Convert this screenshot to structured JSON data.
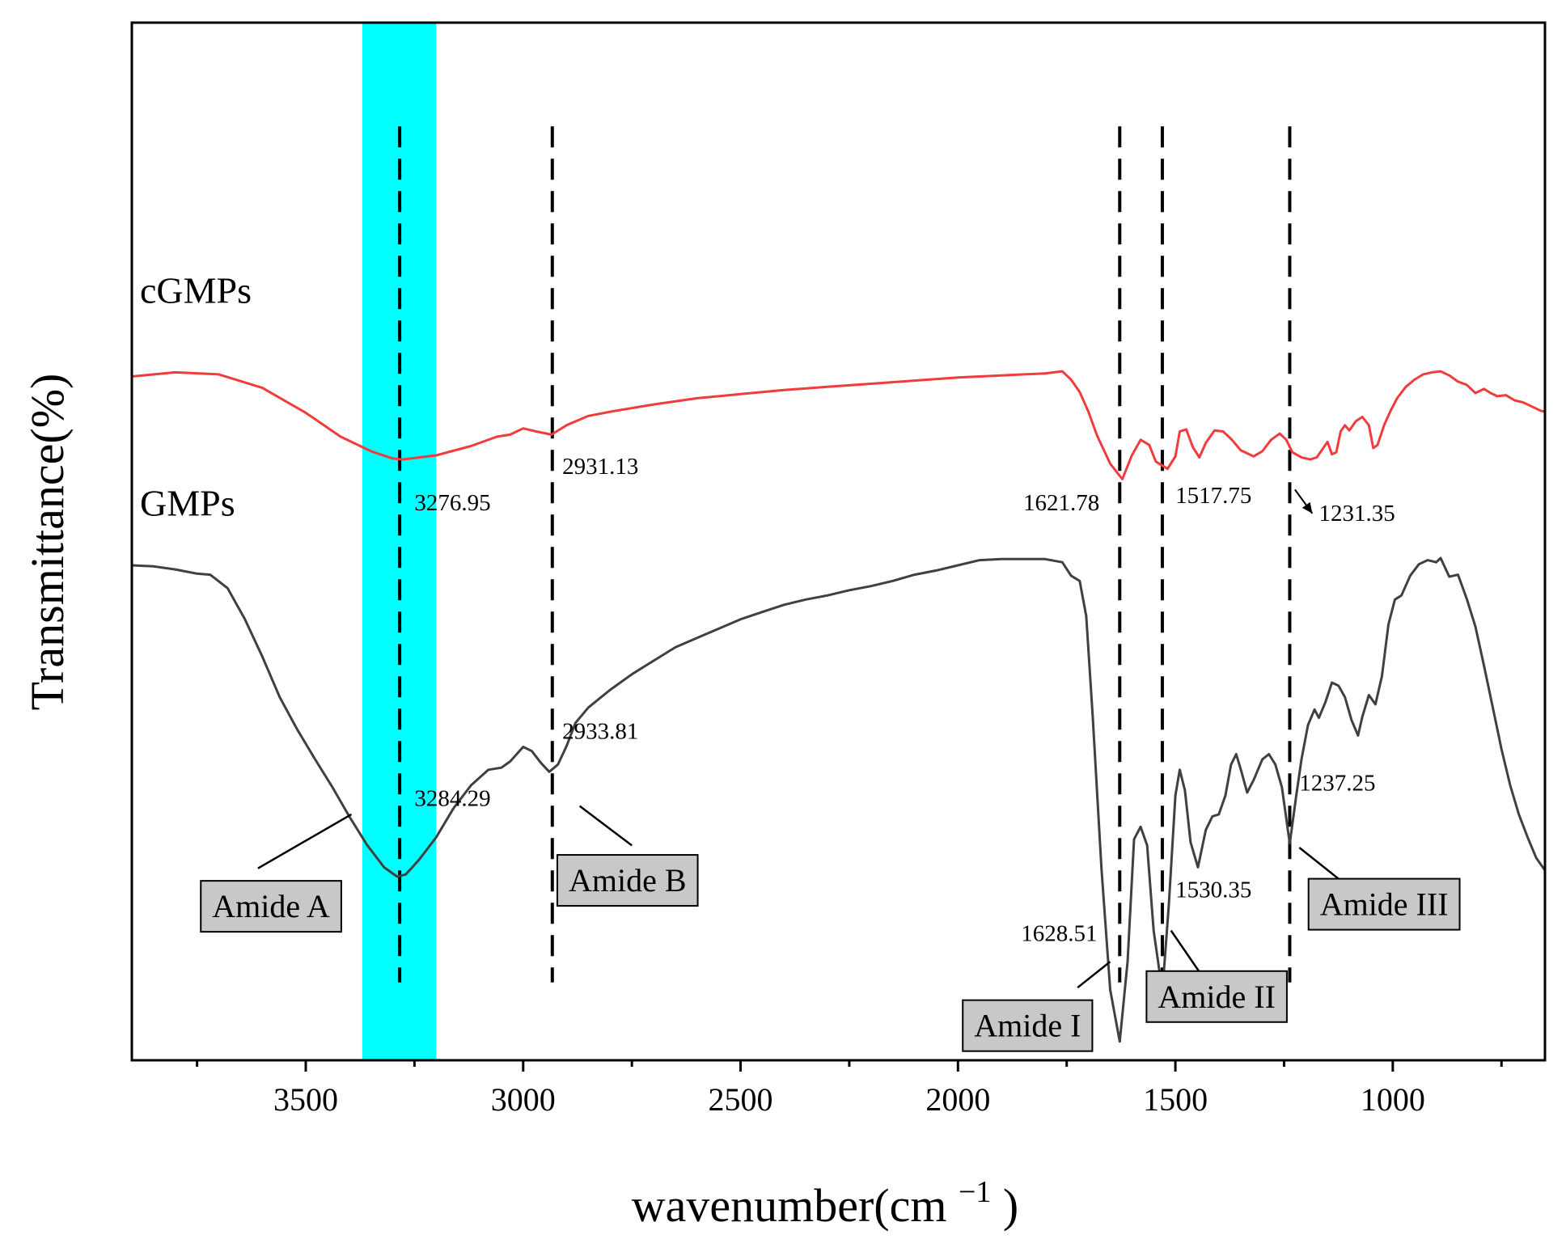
{
  "chart_data": {
    "type": "line",
    "xlabel": "wavenumber(cm",
    "xlabel_superscript": "−1",
    "xlabel_close": ")",
    "ylabel": "Transmittance(%)",
    "xlim": [
      3900,
      650
    ],
    "ylim": [
      0,
      100
    ],
    "x_ticks": [
      3500,
      3000,
      2500,
      2000,
      1500,
      1000
    ],
    "x_tick_labels": [
      "3500",
      "3000",
      "2500",
      "2000",
      "1500",
      "1000"
    ],
    "minor_ticks": [
      3750,
      3250,
      2750,
      2250,
      1750,
      1250,
      750
    ],
    "highlight_band": {
      "from": 3370,
      "to": 3200,
      "color": "#00ffff"
    },
    "dashed_lines": [
      3284,
      2933,
      1628,
      1530,
      1237
    ],
    "series": [
      {
        "name": "cGMPs",
        "color": "#f03c3c",
        "points": [
          [
            3900,
            65.9
          ],
          [
            3800,
            66.3
          ],
          [
            3700,
            66.1
          ],
          [
            3600,
            64.8
          ],
          [
            3500,
            62.4
          ],
          [
            3420,
            60.1
          ],
          [
            3350,
            58.7
          ],
          [
            3300,
            58.0
          ],
          [
            3277,
            57.9
          ],
          [
            3200,
            58.3
          ],
          [
            3120,
            59.2
          ],
          [
            3060,
            60.1
          ],
          [
            3030,
            60.3
          ],
          [
            3000,
            60.9
          ],
          [
            2970,
            60.6
          ],
          [
            2935,
            60.3
          ],
          [
            2900,
            61.2
          ],
          [
            2850,
            62.1
          ],
          [
            2800,
            62.5
          ],
          [
            2700,
            63.2
          ],
          [
            2600,
            63.8
          ],
          [
            2500,
            64.2
          ],
          [
            2400,
            64.6
          ],
          [
            2300,
            64.9
          ],
          [
            2200,
            65.2
          ],
          [
            2100,
            65.5
          ],
          [
            2000,
            65.8
          ],
          [
            1900,
            66.0
          ],
          [
            1800,
            66.2
          ],
          [
            1760,
            66.4
          ],
          [
            1740,
            65.6
          ],
          [
            1720,
            64.4
          ],
          [
            1700,
            62.5
          ],
          [
            1680,
            60.2
          ],
          [
            1650,
            57.5
          ],
          [
            1622,
            56.0
          ],
          [
            1600,
            58.3
          ],
          [
            1580,
            59.8
          ],
          [
            1560,
            59.3
          ],
          [
            1545,
            57.7
          ],
          [
            1518,
            57.0
          ],
          [
            1500,
            58.2
          ],
          [
            1490,
            60.6
          ],
          [
            1475,
            60.8
          ],
          [
            1460,
            59.1
          ],
          [
            1445,
            58.1
          ],
          [
            1430,
            59.5
          ],
          [
            1410,
            60.7
          ],
          [
            1390,
            60.6
          ],
          [
            1370,
            59.8
          ],
          [
            1350,
            58.8
          ],
          [
            1320,
            58.2
          ],
          [
            1300,
            58.7
          ],
          [
            1280,
            59.8
          ],
          [
            1260,
            60.4
          ],
          [
            1245,
            59.8
          ],
          [
            1231,
            58.6
          ],
          [
            1210,
            58.1
          ],
          [
            1190,
            57.9
          ],
          [
            1175,
            58.1
          ],
          [
            1160,
            59.0
          ],
          [
            1150,
            59.6
          ],
          [
            1140,
            58.4
          ],
          [
            1130,
            58.6
          ],
          [
            1120,
            60.6
          ],
          [
            1110,
            61.2
          ],
          [
            1100,
            60.7
          ],
          [
            1085,
            61.6
          ],
          [
            1070,
            62.0
          ],
          [
            1055,
            61.2
          ],
          [
            1045,
            59.0
          ],
          [
            1035,
            59.3
          ],
          [
            1020,
            61.2
          ],
          [
            1005,
            62.6
          ],
          [
            990,
            63.8
          ],
          [
            970,
            64.9
          ],
          [
            950,
            65.6
          ],
          [
            930,
            66.1
          ],
          [
            910,
            66.3
          ],
          [
            890,
            66.4
          ],
          [
            870,
            66.0
          ],
          [
            850,
            65.4
          ],
          [
            830,
            65.1
          ],
          [
            810,
            64.3
          ],
          [
            790,
            64.7
          ],
          [
            775,
            64.3
          ],
          [
            760,
            64.0
          ],
          [
            740,
            64.1
          ],
          [
            720,
            63.6
          ],
          [
            700,
            63.4
          ],
          [
            680,
            63.0
          ],
          [
            660,
            62.6
          ],
          [
            650,
            62.5
          ]
        ]
      },
      {
        "name": "GMPs",
        "color": "#404040",
        "points": [
          [
            3900,
            47.7
          ],
          [
            3850,
            47.6
          ],
          [
            3800,
            47.3
          ],
          [
            3750,
            46.9
          ],
          [
            3720,
            46.8
          ],
          [
            3680,
            45.5
          ],
          [
            3640,
            42.5
          ],
          [
            3600,
            38.9
          ],
          [
            3560,
            35.0
          ],
          [
            3520,
            31.9
          ],
          [
            3480,
            29.1
          ],
          [
            3440,
            26.4
          ],
          [
            3400,
            23.5
          ],
          [
            3360,
            20.8
          ],
          [
            3320,
            18.6
          ],
          [
            3290,
            17.7
          ],
          [
            3270,
            17.9
          ],
          [
            3240,
            19.3
          ],
          [
            3200,
            21.5
          ],
          [
            3160,
            24.3
          ],
          [
            3120,
            26.5
          ],
          [
            3080,
            28.0
          ],
          [
            3050,
            28.2
          ],
          [
            3030,
            28.8
          ],
          [
            3000,
            30.2
          ],
          [
            2980,
            29.8
          ],
          [
            2960,
            28.7
          ],
          [
            2940,
            27.8
          ],
          [
            2920,
            28.5
          ],
          [
            2900,
            30.3
          ],
          [
            2880,
            32.5
          ],
          [
            2850,
            34.0
          ],
          [
            2800,
            35.7
          ],
          [
            2750,
            37.2
          ],
          [
            2700,
            38.5
          ],
          [
            2650,
            39.8
          ],
          [
            2600,
            40.7
          ],
          [
            2550,
            41.6
          ],
          [
            2500,
            42.5
          ],
          [
            2450,
            43.2
          ],
          [
            2400,
            43.9
          ],
          [
            2350,
            44.4
          ],
          [
            2300,
            44.8
          ],
          [
            2250,
            45.3
          ],
          [
            2200,
            45.7
          ],
          [
            2150,
            46.2
          ],
          [
            2100,
            46.8
          ],
          [
            2050,
            47.2
          ],
          [
            2000,
            47.7
          ],
          [
            1950,
            48.2
          ],
          [
            1900,
            48.3
          ],
          [
            1850,
            48.3
          ],
          [
            1800,
            48.3
          ],
          [
            1760,
            48.0
          ],
          [
            1740,
            46.7
          ],
          [
            1720,
            46.2
          ],
          [
            1705,
            42.8
          ],
          [
            1690,
            33.0
          ],
          [
            1670,
            18.5
          ],
          [
            1650,
            6.8
          ],
          [
            1628,
            1.8
          ],
          [
            1610,
            9.5
          ],
          [
            1595,
            21.3
          ],
          [
            1580,
            22.5
          ],
          [
            1565,
            20.7
          ],
          [
            1550,
            12.5
          ],
          [
            1530,
            6.6
          ],
          [
            1515,
            15.0
          ],
          [
            1500,
            25.5
          ],
          [
            1490,
            28.0
          ],
          [
            1478,
            26.0
          ],
          [
            1465,
            21.0
          ],
          [
            1448,
            18.6
          ],
          [
            1430,
            22.2
          ],
          [
            1415,
            23.5
          ],
          [
            1400,
            23.7
          ],
          [
            1385,
            25.5
          ],
          [
            1372,
            28.5
          ],
          [
            1360,
            29.5
          ],
          [
            1348,
            27.8
          ],
          [
            1335,
            25.8
          ],
          [
            1320,
            27.0
          ],
          [
            1300,
            29.0
          ],
          [
            1285,
            29.5
          ],
          [
            1270,
            28.5
          ],
          [
            1255,
            26.3
          ],
          [
            1237,
            20.9
          ],
          [
            1222,
            25.5
          ],
          [
            1210,
            29.0
          ],
          [
            1195,
            32.3
          ],
          [
            1180,
            33.8
          ],
          [
            1170,
            33.0
          ],
          [
            1155,
            34.5
          ],
          [
            1140,
            36.4
          ],
          [
            1125,
            36.1
          ],
          [
            1110,
            35.0
          ],
          [
            1095,
            32.8
          ],
          [
            1080,
            31.3
          ],
          [
            1070,
            33.1
          ],
          [
            1055,
            35.2
          ],
          [
            1040,
            34.3
          ],
          [
            1025,
            37.0
          ],
          [
            1010,
            42.0
          ],
          [
            995,
            44.4
          ],
          [
            980,
            44.8
          ],
          [
            960,
            46.7
          ],
          [
            940,
            47.8
          ],
          [
            920,
            48.2
          ],
          [
            900,
            48.0
          ],
          [
            890,
            48.4
          ],
          [
            870,
            46.6
          ],
          [
            850,
            46.8
          ],
          [
            830,
            44.5
          ],
          [
            810,
            41.8
          ],
          [
            790,
            38.0
          ],
          [
            770,
            34.0
          ],
          [
            750,
            30.0
          ],
          [
            730,
            26.5
          ],
          [
            710,
            23.7
          ],
          [
            690,
            21.5
          ],
          [
            670,
            19.5
          ],
          [
            650,
            18.3
          ]
        ]
      }
    ],
    "series_labels": [
      {
        "text": "cGMPs",
        "x": 3900,
        "y": 73
      },
      {
        "text": "GMPs",
        "x": 3900,
        "y": 52.5
      }
    ],
    "peak_annotations": [
      {
        "text": "3276.95",
        "x": 3250,
        "y": 53.0
      },
      {
        "text": "2931.13",
        "x": 2910,
        "y": 56.5
      },
      {
        "text": "1621.78",
        "x": 1850,
        "y": 53.0
      },
      {
        "text": "1517.75",
        "x": 1500,
        "y": 53.7
      },
      {
        "text": "1231.35",
        "x": 1170,
        "y": 52.0
      },
      {
        "text": "2933.81",
        "x": 2910,
        "y": 31.0
      },
      {
        "text": "3284.29",
        "x": 3250,
        "y": 24.5
      },
      {
        "text": "1530.35",
        "x": 1500,
        "y": 15.7
      },
      {
        "text": "1628.51",
        "x": 1855,
        "y": 11.5
      },
      {
        "text": "1237.25",
        "x": 1215,
        "y": 26.0
      }
    ],
    "callouts": [
      {
        "text": "Amide A",
        "x": 3580,
        "y": 14.5,
        "line": [
          [
            3610,
            18.5
          ],
          [
            3395,
            23.7
          ]
        ]
      },
      {
        "text": "Amide B",
        "x": 2760,
        "y": 17.0,
        "line": [
          [
            2870,
            24.5
          ],
          [
            2750,
            20.7
          ]
        ]
      },
      {
        "text": "Amide I",
        "x": 1840,
        "y": 3.0,
        "line": [
          [
            1725,
            7.0
          ],
          [
            1650,
            9.5
          ]
        ]
      },
      {
        "text": "Amide II",
        "x": 1405,
        "y": 5.8,
        "line": [
          [
            1510,
            12.5
          ],
          [
            1420,
            7.0
          ]
        ]
      },
      {
        "text": "Amide III",
        "x": 1020,
        "y": 14.7,
        "line": [
          [
            1215,
            20.5
          ],
          [
            1125,
            17.5
          ]
        ]
      }
    ],
    "arrow": {
      "from": [
        1225,
        55.0
      ],
      "to": [
        1185,
        52.7
      ]
    }
  }
}
